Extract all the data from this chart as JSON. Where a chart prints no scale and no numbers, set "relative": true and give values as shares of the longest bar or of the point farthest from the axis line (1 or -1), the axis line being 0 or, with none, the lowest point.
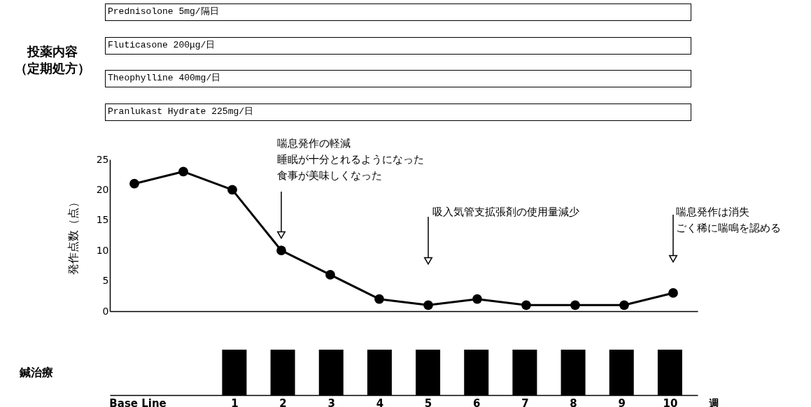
{
  "chart_data": [
    {
      "type": "other",
      "ylabel": "投薬内容（定期処方）",
      "annotations": [
        "Prednisolone 5mg/隔日",
        "Fluticasone 200μg/日",
        "Theophylline 400mg/日",
        "Pranlukast Hydrate 225mg/日"
      ]
    },
    {
      "type": "line",
      "x": [
        -1,
        0,
        1,
        2,
        3,
        4,
        5,
        6,
        7,
        8,
        9,
        10
      ],
      "xlim": [
        -1.5,
        10.5
      ],
      "ylim": [
        0,
        25
      ],
      "yticks": [
        0,
        5,
        10,
        15,
        20,
        25
      ],
      "ylabel": "発作点数（点）",
      "tick_labels": "y",
      "marker": "circle",
      "series": [
        {
          "color": "#000000",
          "values": [
            21,
            23,
            20,
            10,
            6,
            2,
            1,
            2,
            1,
            1,
            1,
            3
          ]
        }
      ],
      "annotations": [
        "喘息発作の軽減",
        "睡眠が十分とれるようになった",
        "食事が美味しくなった",
        "吸入気管支拡張剤の使用量減少",
        "喘息発作は消失",
        "ごく稀に喘鳴を認める"
      ]
    },
    {
      "type": "bar",
      "relative": true,
      "x": [
        1,
        2,
        3,
        4,
        5,
        6,
        7,
        8,
        9,
        10
      ],
      "values": [
        1,
        1,
        1,
        1,
        1,
        1,
        1,
        1,
        1,
        1
      ],
      "color": "#000000",
      "xlim": [
        -1.5,
        10.5
      ],
      "xticks": [
        {
          "value": -1,
          "label": "Base Line"
        },
        1,
        2,
        3,
        4,
        5,
        6,
        7,
        8,
        9,
        10
      ],
      "xlabel": "週",
      "ylabel": "鍼治療",
      "tick_labels": "x"
    }
  ]
}
